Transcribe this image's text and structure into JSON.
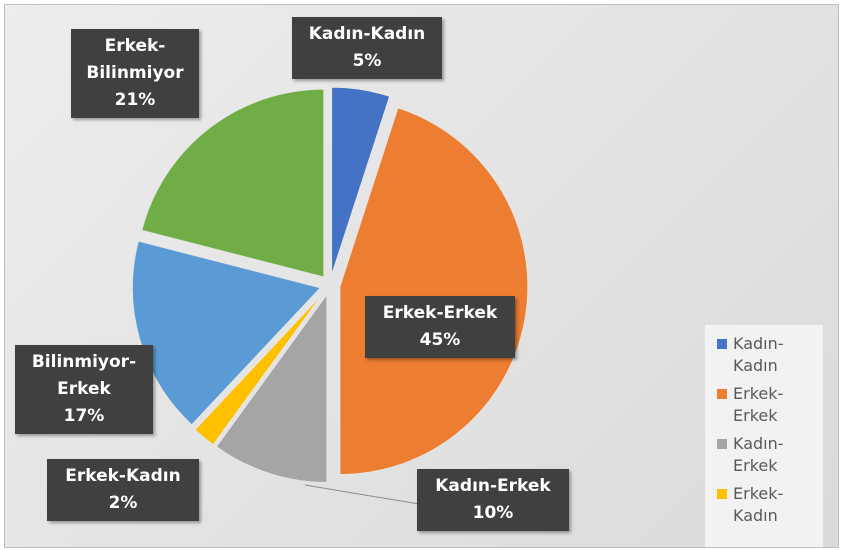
{
  "chart_data": {
    "type": "pie",
    "exploded": true,
    "legend_position": "bottom-right",
    "slices": [
      {
        "name": "Kadın-Kadın",
        "value": 5,
        "label": "5%",
        "color": "#4472c4"
      },
      {
        "name": "Erkek-Erkek",
        "value": 45,
        "label": "45%",
        "color": "#ed7d31"
      },
      {
        "name": "Kadın-Erkek",
        "value": 10,
        "label": "10%",
        "color": "#a5a5a5"
      },
      {
        "name": "Erkek-Kadın",
        "value": 2,
        "label": "2%",
        "color": "#ffc000"
      },
      {
        "name": "Bilinmiyor-Erkek",
        "value": 17,
        "label": "17%",
        "color": "#5b9bd5"
      },
      {
        "name": "Erkek-Bilinmiyor",
        "value": 21,
        "label": "21%",
        "color": "#70ad47"
      }
    ],
    "data_labels": [
      {
        "lines": [
          "Kadın-Kadın",
          "5%"
        ]
      },
      {
        "lines": [
          "Erkek-Erkek",
          "45%"
        ]
      },
      {
        "lines": [
          "Kadın-Erkek",
          "10%"
        ]
      },
      {
        "lines": [
          "Erkek-Kadın",
          "2%"
        ]
      },
      {
        "lines": [
          "Bilinmiyor-",
          "Erkek",
          "17%"
        ]
      },
      {
        "lines": [
          "Erkek-",
          "Bilinmiyor",
          "21%"
        ]
      }
    ],
    "legend": [
      {
        "lines": [
          "Kadın-",
          "Kadın"
        ],
        "color": "#4472c4"
      },
      {
        "lines": [
          "Erkek-",
          "Erkek"
        ],
        "color": "#ed7d31"
      },
      {
        "lines": [
          "Kadın-",
          "Erkek"
        ],
        "color": "#a5a5a5"
      },
      {
        "lines": [
          "Erkek-",
          "Kadın"
        ],
        "color": "#ffc000"
      }
    ]
  }
}
